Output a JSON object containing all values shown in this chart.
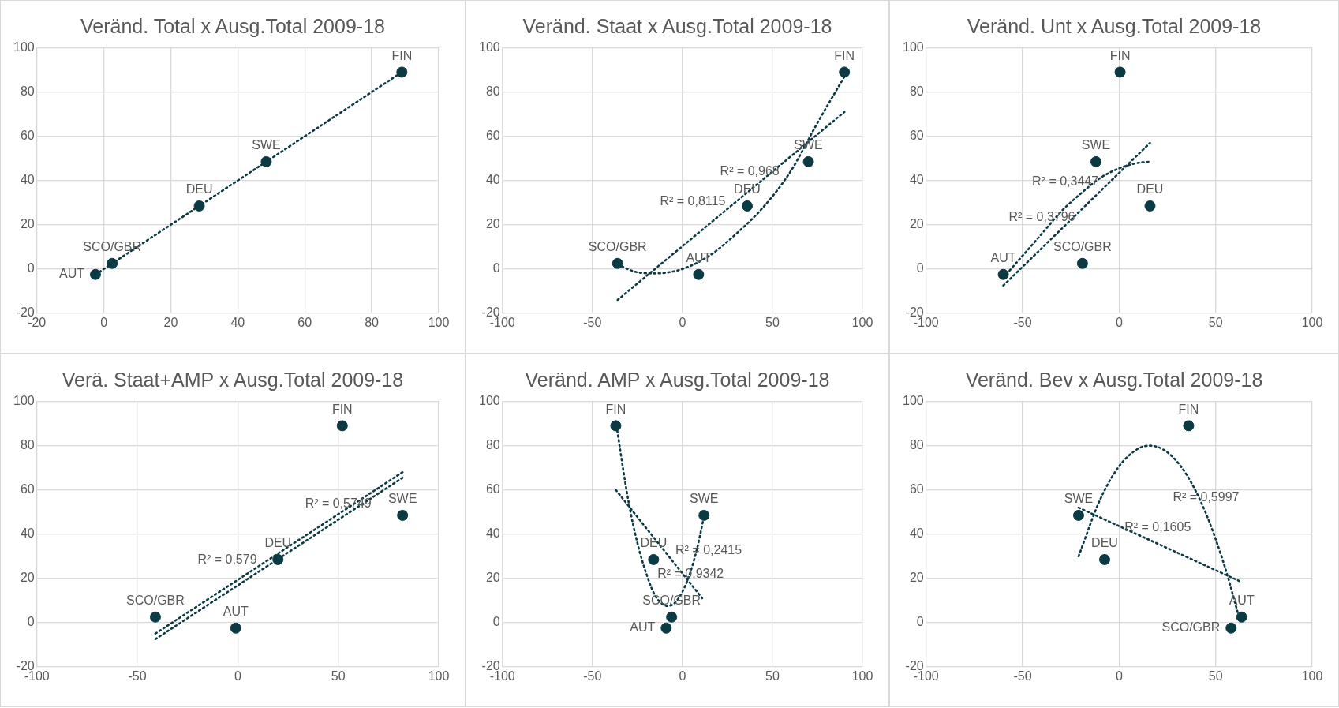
{
  "chart_data": [
    {
      "type": "scatter",
      "title": "Veränd. Total x Ausg.Total 2009-18",
      "xlim": [
        -20,
        100
      ],
      "xticks": [
        -20,
        0,
        20,
        40,
        60,
        80,
        100
      ],
      "ylim": [
        -20,
        100
      ],
      "yticks": [
        -20,
        0,
        20,
        40,
        60,
        80,
        100
      ],
      "grid": true,
      "series": [
        {
          "type": "scatter",
          "color": "#0b3a44",
          "marker": "circle",
          "x": [
            -2.5,
            2.5,
            28.5,
            48.5,
            89
          ],
          "values": [
            -2.5,
            2.5,
            28.5,
            48.5,
            89
          ]
        },
        {
          "type": "line",
          "color": "#0b3a44",
          "marker": "none",
          "line_style": "dotted",
          "x": [
            -2.5,
            89
          ],
          "values": [
            -2.5,
            89
          ]
        }
      ],
      "annotations": [
        {
          "text": "FIN",
          "x": 89,
          "y": 89
        },
        {
          "text": "SWE",
          "x": 48.5,
          "y": 48.5
        },
        {
          "text": "DEU",
          "x": 28.5,
          "y": 28.5
        },
        {
          "text": "SCO/GBR",
          "x": 2.5,
          "y": 2.5
        },
        {
          "text": "AUT",
          "x": -2.5,
          "y": -2.5
        }
      ]
    },
    {
      "type": "scatter",
      "title": "Veränd. Staat x Ausg.Total 2009-18",
      "xlim": [
        -100,
        100
      ],
      "xticks": [
        -100,
        -50,
        0,
        50,
        100
      ],
      "ylim": [
        -20,
        100
      ],
      "yticks": [
        -20,
        0,
        20,
        40,
        60,
        80,
        100
      ],
      "grid": true,
      "series": [
        {
          "type": "scatter",
          "color": "#0b3a44",
          "marker": "circle",
          "x": [
            -36,
            9,
            36,
            70,
            90
          ],
          "values": [
            2.5,
            -2.5,
            28.5,
            48.5,
            89
          ]
        },
        {
          "type": "line",
          "color": "#0b3a44",
          "marker": "none",
          "line_style": "dotted",
          "x": [
            -36,
            90
          ],
          "values": [
            -14,
            71
          ]
        },
        {
          "type": "line",
          "color": "#0b3a44",
          "marker": "none",
          "line_style": "dotted",
          "x": [
            -36,
            -25,
            -15,
            0,
            15,
            30,
            45,
            60,
            75,
            90
          ],
          "values": [
            2,
            -1.5,
            -2,
            0,
            6,
            16,
            28,
            44,
            66,
            87
          ]
        }
      ],
      "annotations": [
        {
          "text": "FIN",
          "x": 90,
          "y": 89
        },
        {
          "text": "SWE",
          "x": 70,
          "y": 48.5
        },
        {
          "text": "DEU",
          "x": 36,
          "y": 28.5
        },
        {
          "text": "SCO/GBR",
          "x": -36,
          "y": 2.5
        },
        {
          "text": "AUT",
          "x": 9,
          "y": -2.5
        },
        {
          "text": "R² = 0,8115",
          "x": 30,
          "y": 30.5
        },
        {
          "text": "R² = 0,968",
          "x": 60,
          "y": 44
        }
      ]
    },
    {
      "type": "scatter",
      "title": "Veränd. Unt x Ausg.Total 2009-18",
      "xlim": [
        -100,
        100
      ],
      "xticks": [
        -100,
        -50,
        0,
        50,
        100
      ],
      "ylim": [
        -20,
        100
      ],
      "yticks": [
        -20,
        0,
        20,
        40,
        60,
        80,
        100
      ],
      "grid": true,
      "series": [
        {
          "type": "scatter",
          "color": "#0b3a44",
          "marker": "circle",
          "x": [
            -60,
            -19,
            -12,
            0.5,
            16
          ],
          "values": [
            -2.5,
            2.5,
            48.5,
            89,
            28.5
          ]
        },
        {
          "type": "line",
          "color": "#0b3a44",
          "marker": "none",
          "line_style": "dotted",
          "x": [
            -60,
            16
          ],
          "values": [
            -7.5,
            57
          ]
        },
        {
          "type": "line",
          "color": "#0b3a44",
          "marker": "none",
          "line_style": "dotted",
          "x": [
            -60,
            -50,
            -40,
            -30,
            -20,
            -10,
            0,
            10,
            16
          ],
          "values": [
            -4,
            6,
            16,
            26,
            34,
            41,
            45.5,
            48,
            48.5
          ]
        }
      ],
      "annotations": [
        {
          "text": "FIN",
          "x": 0.5,
          "y": 89
        },
        {
          "text": "SWE",
          "x": -12,
          "y": 48.5
        },
        {
          "text": "DEU",
          "x": 16,
          "y": 28.5
        },
        {
          "text": "SCO/GBR",
          "x": -19,
          "y": 2.5
        },
        {
          "text": "AUT",
          "x": -60,
          "y": -2.5
        },
        {
          "text": "R² = 0,3796",
          "x": -40,
          "y": 16
        },
        {
          "text": "R² = 0,3447",
          "x": -5,
          "y": 39.2
        }
      ]
    },
    {
      "type": "scatter",
      "title": "Verä. Staat+AMP x Ausg.Total 2009-18",
      "xlim": [
        -100,
        100
      ],
      "xticks": [
        -100,
        -50,
        0,
        50,
        100
      ],
      "ylim": [
        -20,
        100
      ],
      "yticks": [
        -20,
        0,
        20,
        40,
        60,
        80,
        100
      ],
      "grid": true,
      "series": [
        {
          "type": "scatter",
          "color": "#0b3a44",
          "marker": "circle",
          "x": [
            -41,
            -1,
            20,
            52,
            82
          ],
          "values": [
            2.5,
            -2.5,
            28.5,
            89,
            48.5
          ]
        },
        {
          "type": "line",
          "color": "#0b3a44",
          "marker": "none",
          "line_style": "dotted",
          "x": [
            -41,
            82
          ],
          "values": [
            -5,
            68
          ]
        },
        {
          "type": "line",
          "color": "#0b3a44",
          "marker": "none",
          "line_style": "dotted",
          "x": [
            -41,
            82
          ],
          "values": [
            -7.5,
            65.5
          ]
        }
      ],
      "annotations": [
        {
          "text": "FIN",
          "x": 52,
          "y": 89
        },
        {
          "text": "SWE",
          "x": 82,
          "y": 48.5
        },
        {
          "text": "DEU",
          "x": 20,
          "y": 28.5
        },
        {
          "text": "SCO/GBR",
          "x": -41,
          "y": 2.5
        },
        {
          "text": "AUT",
          "x": -1,
          "y": -2.5
        },
        {
          "text": "R² = 0,579",
          "x": 15,
          "y": 28.2
        },
        {
          "text": "R² = 0,5749",
          "x": 50,
          "y": 46.5
        }
      ]
    },
    {
      "type": "scatter",
      "title": "Veränd. AMP x Ausg.Total 2009-18",
      "xlim": [
        -100,
        100
      ],
      "xticks": [
        -100,
        -50,
        0,
        50,
        100
      ],
      "ylim": [
        -20,
        100
      ],
      "yticks": [
        -20,
        0,
        20,
        40,
        60,
        80,
        100
      ],
      "grid": true,
      "series": [
        {
          "type": "scatter",
          "color": "#0b3a44",
          "marker": "circle",
          "x": [
            -37,
            -16,
            -9,
            -6,
            12
          ],
          "values": [
            89,
            28.5,
            -2.5,
            2.5,
            48.5
          ]
        },
        {
          "type": "line",
          "color": "#0b3a44",
          "marker": "none",
          "line_style": "dotted",
          "x": [
            -37,
            11
          ],
          "values": [
            60,
            11
          ]
        },
        {
          "type": "line",
          "color": "#0b3a44",
          "marker": "none",
          "line_style": "dotted",
          "x": [
            -37,
            -30,
            -25,
            -20,
            -15,
            -8,
            -3,
            3,
            8,
            12
          ],
          "values": [
            91,
            55,
            36,
            22,
            12,
            7.5,
            10,
            19.5,
            33,
            48
          ]
        }
      ],
      "annotations": [
        {
          "text": "FIN",
          "x": -37,
          "y": 89
        },
        {
          "text": "SWE",
          "x": 12,
          "y": 48.5
        },
        {
          "text": "DEU",
          "x": -16,
          "y": 28.5
        },
        {
          "text": "SCO/GBR",
          "x": -6,
          "y": 2.5
        },
        {
          "text": "AUT",
          "x": -9,
          "y": -2.5
        },
        {
          "text": "R² = 0,2415",
          "x": -10,
          "y": 32.4
        },
        {
          "text": "R² = 0,9342",
          "x": -20,
          "y": 22
        }
      ]
    },
    {
      "type": "scatter",
      "title": "Veränd. Bev x Ausg.Total 2009-18",
      "xlim": [
        -100,
        100
      ],
      "xticks": [
        -100,
        -50,
        0,
        50,
        100
      ],
      "ylim": [
        -20,
        100
      ],
      "yticks": [
        -20,
        0,
        20,
        40,
        60,
        80,
        100
      ],
      "grid": true,
      "series": [
        {
          "type": "scatter",
          "color": "#0b3a44",
          "marker": "circle",
          "x": [
            -21,
            -7.5,
            36,
            58,
            63.5
          ],
          "values": [
            48.5,
            28.5,
            89,
            -2.5,
            2.5
          ]
        },
        {
          "type": "line",
          "color": "#0b3a44",
          "marker": "none",
          "line_style": "dotted",
          "x": [
            -21,
            63
          ],
          "values": [
            52,
            18.5
          ]
        },
        {
          "type": "line",
          "color": "#0b3a44",
          "marker": "none",
          "line_style": "dotted",
          "x": [
            -21,
            -10,
            0,
            10,
            16,
            25,
            35,
            45,
            55,
            63
          ],
          "values": [
            30,
            55.3,
            70.7,
            78.7,
            80,
            77,
            66.8,
            49.3,
            24.5,
            -0.5
          ]
        }
      ],
      "annotations": [
        {
          "text": "FIN",
          "x": 36,
          "y": 89
        },
        {
          "text": "SWE",
          "x": -21,
          "y": 48.5
        },
        {
          "text": "DEU",
          "x": -7.5,
          "y": 28.5
        },
        {
          "text": "SCO/GBR",
          "x": 58,
          "y": -2.5
        },
        {
          "text": "AUT",
          "x": 63.5,
          "y": 2.5
        },
        {
          "text": "R² = 0,5997",
          "x": 45,
          "y": 49.3
        },
        {
          "text": "R² = 0,1605",
          "x": 20,
          "y": 35.6
        }
      ]
    }
  ]
}
